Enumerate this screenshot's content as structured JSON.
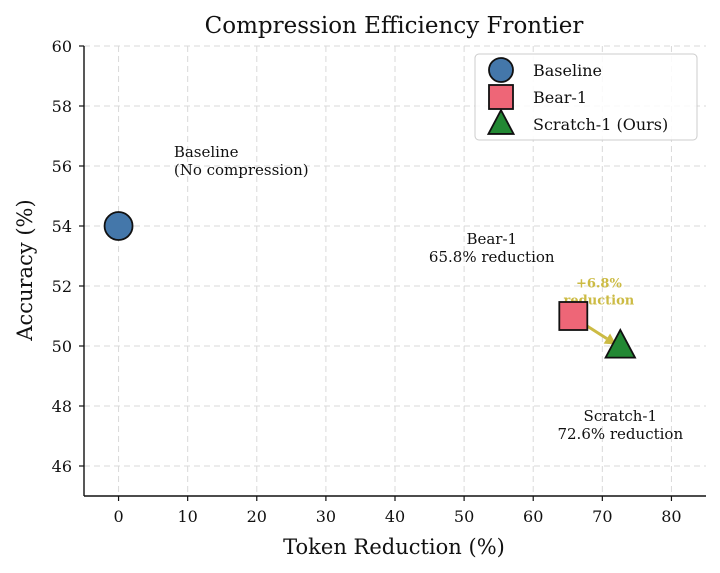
{
  "chart_data": {
    "type": "scatter",
    "title": "Compression Efficiency Frontier",
    "xlabel": "Token Reduction (%)",
    "ylabel": "Accuracy (%)",
    "xlim": [
      -5,
      85
    ],
    "ylim": [
      45,
      60
    ],
    "xticks": [
      0,
      10,
      20,
      30,
      40,
      50,
      60,
      70,
      80
    ],
    "yticks": [
      46,
      48,
      50,
      52,
      54,
      56,
      58,
      60
    ],
    "grid": true,
    "legend_position": "top-right",
    "series": [
      {
        "name": "Baseline",
        "marker": "circle",
        "color": "#4477aa",
        "x": 0,
        "y": 54
      },
      {
        "name": "Bear-1",
        "marker": "square",
        "color": "#ee6677",
        "x": 65.8,
        "y": 51
      },
      {
        "name": "Scratch-1 (Ours)",
        "marker": "triangle",
        "color": "#228833",
        "x": 72.6,
        "y": 50
      }
    ],
    "annotations": [
      {
        "lines": [
          "Baseline",
          "(No compression)"
        ],
        "x": 8,
        "y": 56.3,
        "anchor": "start"
      },
      {
        "lines": [
          "Bear-1",
          "65.8% reduction"
        ],
        "x": 54,
        "y": 53.4,
        "anchor": "middle"
      },
      {
        "lines": [
          "Scratch-1",
          "72.6% reduction"
        ],
        "x": 72.6,
        "y": 47.5,
        "anchor": "middle"
      }
    ],
    "highlight": {
      "lines": [
        "+6.8%",
        "reduction"
      ],
      "color": "#ccbb44",
      "text_x": 69.5,
      "text_y": 51.95,
      "arrow_from": [
        66.2,
        50.9
      ],
      "arrow_to": [
        72.0,
        50.05
      ]
    }
  }
}
